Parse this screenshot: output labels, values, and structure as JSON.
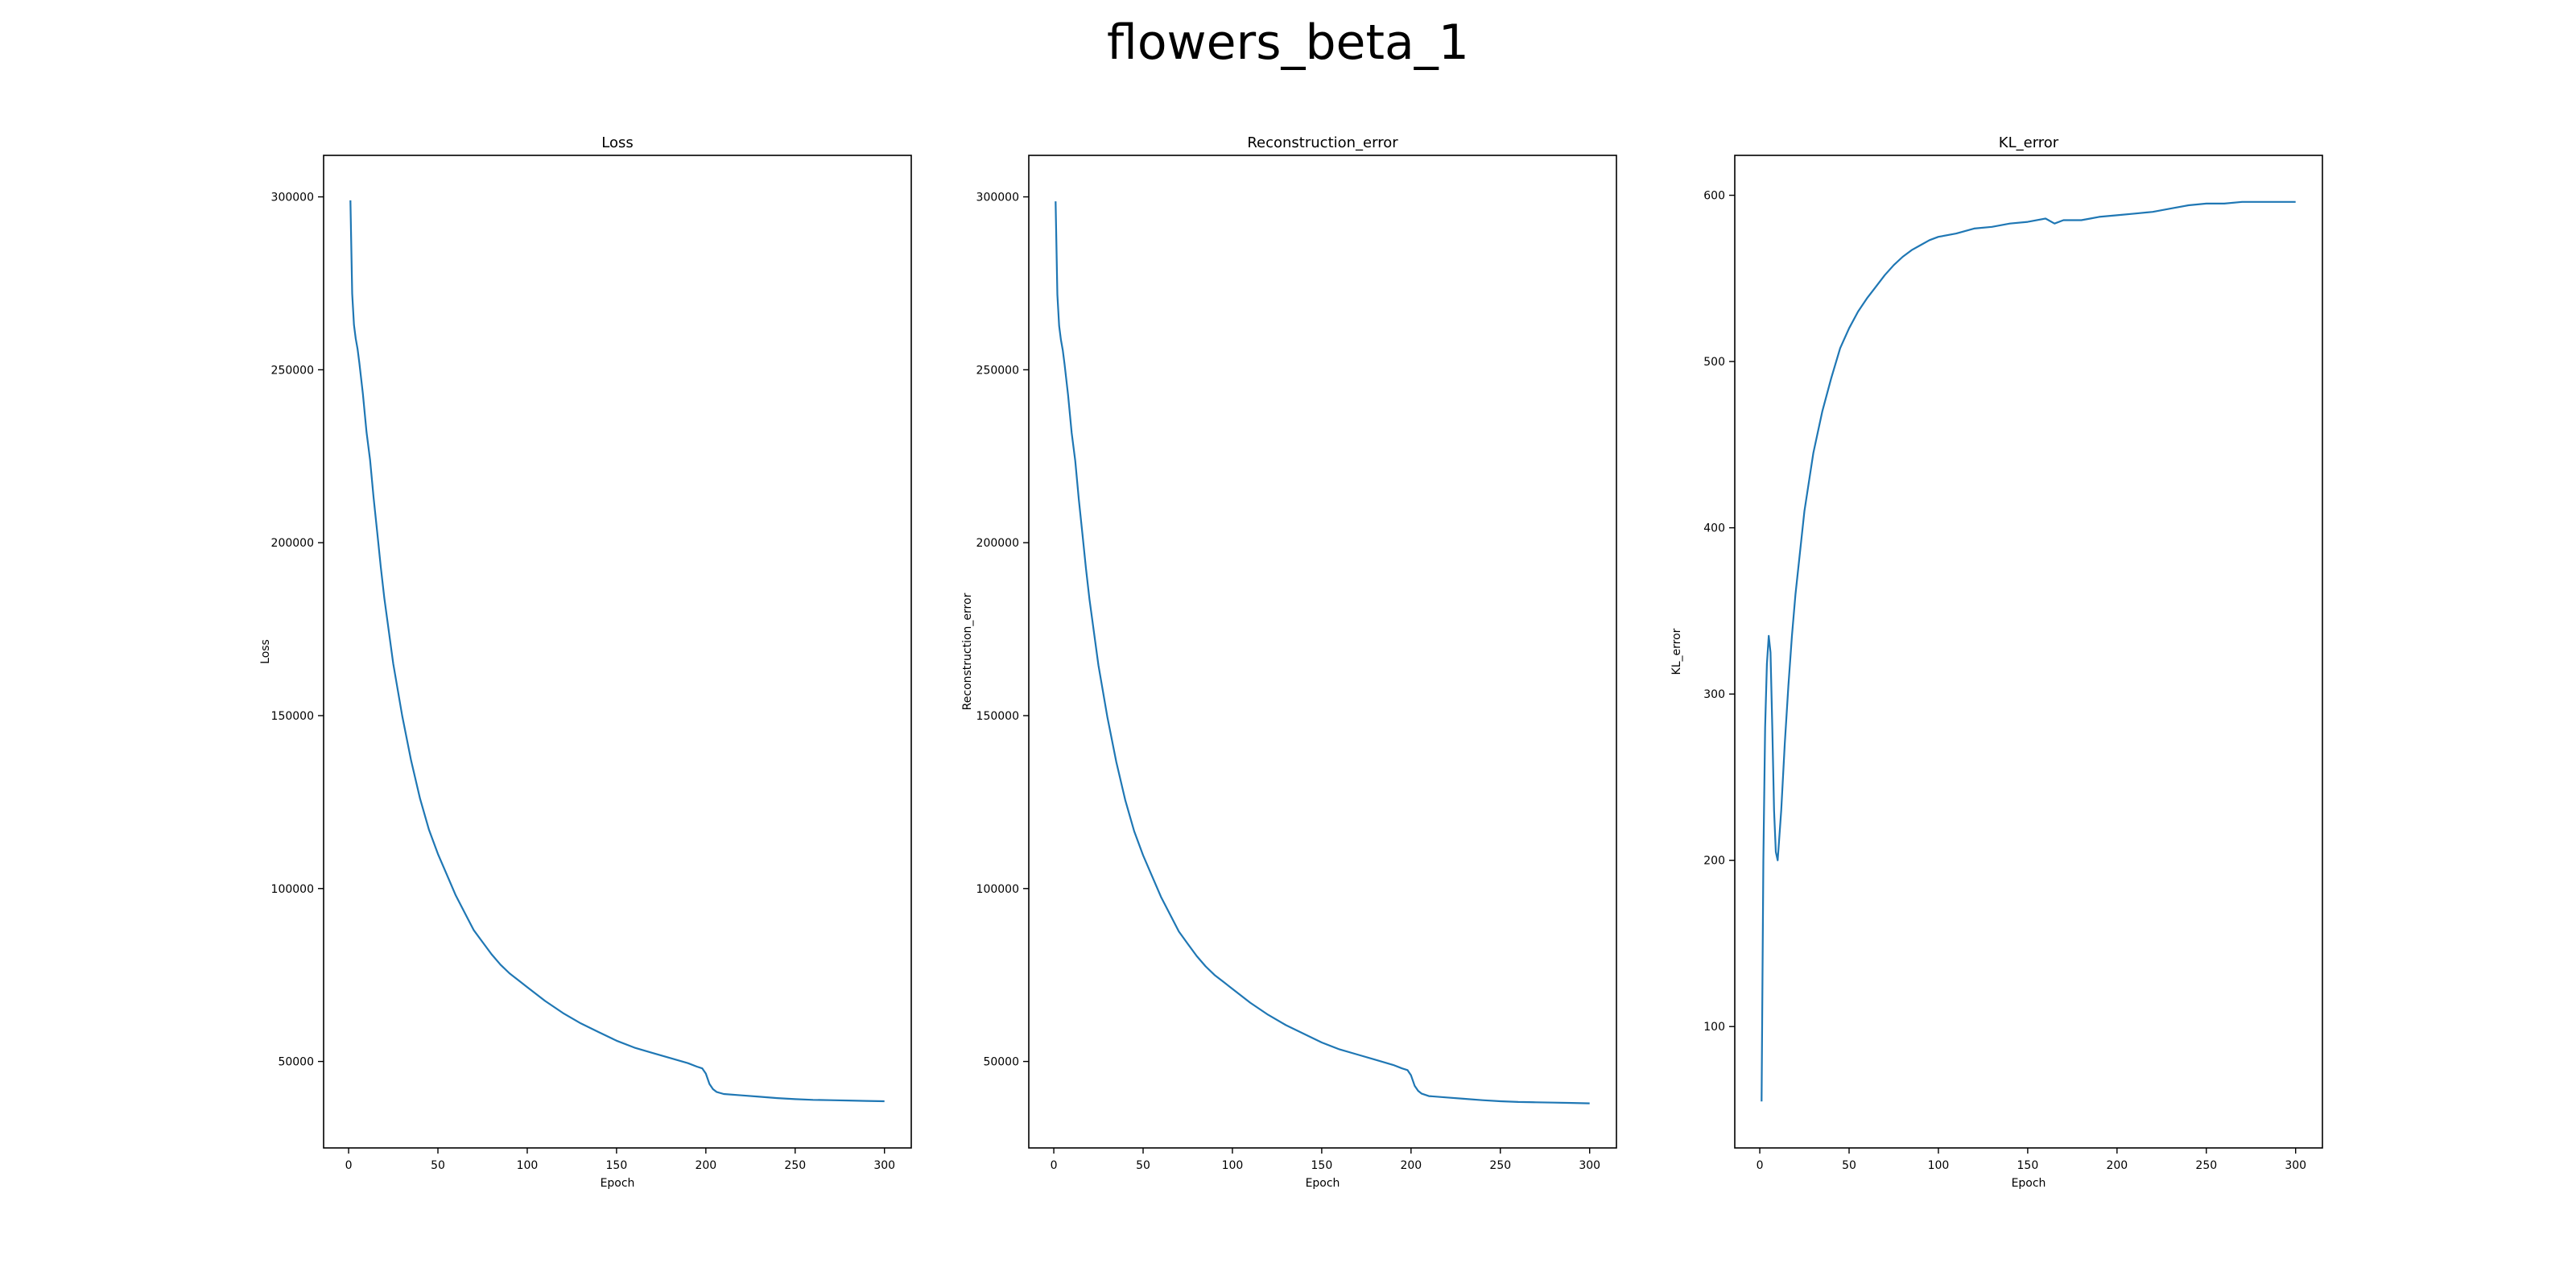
{
  "figure": {
    "suptitle": "flowers_beta_1",
    "line_color": "#1f77b4"
  },
  "chart_data": [
    {
      "type": "line",
      "title": "Loss",
      "xlabel": "Epoch",
      "ylabel": "Loss",
      "xlim": [
        -14,
        315
      ],
      "ylim": [
        25000,
        312000
      ],
      "xticks": [
        0,
        50,
        100,
        150,
        200,
        250,
        300
      ],
      "yticks": [
        50000,
        100000,
        150000,
        200000,
        250000,
        300000
      ],
      "series": [
        {
          "x": [
            1,
            2,
            3,
            4,
            5,
            6,
            8,
            10,
            12,
            14,
            16,
            18,
            20,
            25,
            30,
            35,
            40,
            45,
            50,
            55,
            60,
            65,
            70,
            75,
            80,
            85,
            90,
            95,
            100,
            110,
            120,
            130,
            140,
            150,
            160,
            170,
            180,
            190,
            195,
            198,
            200,
            202,
            204,
            206,
            210,
            220,
            230,
            240,
            250,
            260,
            270,
            280,
            290,
            300
          ],
          "y": [
            299000,
            272000,
            263000,
            259000,
            256000,
            252000,
            243000,
            232000,
            224000,
            213000,
            203000,
            193000,
            184000,
            165000,
            150000,
            137000,
            126000,
            117000,
            110000,
            104000,
            98000,
            93000,
            88000,
            84500,
            81000,
            78000,
            75500,
            73500,
            71500,
            67500,
            64000,
            61000,
            58500,
            56000,
            54000,
            52500,
            51000,
            49500,
            48500,
            48000,
            46500,
            43500,
            42000,
            41200,
            40600,
            40200,
            39800,
            39400,
            39100,
            38900,
            38800,
            38700,
            38600,
            38500
          ]
        }
      ]
    },
    {
      "type": "line",
      "title": "Reconstruction_error",
      "xlabel": "Epoch",
      "ylabel": "Reconstruction_error",
      "xlim": [
        -14,
        315
      ],
      "ylim": [
        25000,
        312000
      ],
      "xticks": [
        0,
        50,
        100,
        150,
        200,
        250,
        300
      ],
      "yticks": [
        50000,
        100000,
        150000,
        200000,
        250000,
        300000
      ],
      "series": [
        {
          "x": [
            1,
            2,
            3,
            4,
            5,
            6,
            8,
            10,
            12,
            14,
            16,
            18,
            20,
            25,
            30,
            35,
            40,
            45,
            50,
            55,
            60,
            65,
            70,
            75,
            80,
            85,
            90,
            95,
            100,
            110,
            120,
            130,
            140,
            150,
            160,
            170,
            180,
            190,
            195,
            198,
            200,
            202,
            204,
            206,
            210,
            220,
            230,
            240,
            250,
            260,
            270,
            280,
            290,
            300
          ],
          "y": [
            298700,
            271700,
            262700,
            258700,
            255700,
            251700,
            242700,
            231700,
            223700,
            212600,
            202600,
            192600,
            183600,
            164600,
            149600,
            136600,
            125600,
            116600,
            109600,
            103600,
            97600,
            92600,
            87600,
            84000,
            80500,
            77500,
            75000,
            73000,
            71000,
            67000,
            63500,
            60500,
            58000,
            55500,
            53500,
            52000,
            50500,
            49000,
            48000,
            47500,
            46000,
            43000,
            41500,
            40700,
            40000,
            39600,
            39200,
            38800,
            38500,
            38300,
            38200,
            38100,
            38000,
            37900
          ]
        }
      ]
    },
    {
      "type": "line",
      "title": "KL_error",
      "xlabel": "Epoch",
      "ylabel": "KL_error",
      "xlim": [
        -14,
        315
      ],
      "ylim": [
        27,
        624
      ],
      "xticks": [
        0,
        50,
        100,
        150,
        200,
        250,
        300
      ],
      "yticks": [
        100,
        200,
        300,
        400,
        500,
        600
      ],
      "series": [
        {
          "x": [
            1,
            2,
            3,
            4,
            5,
            6,
            7,
            8,
            9,
            10,
            12,
            14,
            16,
            18,
            20,
            25,
            30,
            35,
            40,
            45,
            50,
            55,
            60,
            65,
            70,
            75,
            80,
            85,
            90,
            95,
            100,
            110,
            120,
            130,
            140,
            150,
            160,
            165,
            170,
            175,
            180,
            185,
            190,
            200,
            210,
            220,
            230,
            240,
            250,
            260,
            270,
            280,
            290,
            300
          ],
          "y": [
            55,
            200,
            280,
            318,
            335,
            325,
            280,
            230,
            205,
            200,
            230,
            270,
            305,
            335,
            360,
            410,
            445,
            470,
            490,
            508,
            520,
            530,
            538,
            545,
            552,
            558,
            563,
            567,
            570,
            573,
            575,
            577,
            580,
            581,
            583,
            584,
            586,
            583,
            585,
            585,
            585,
            586,
            587,
            588,
            589,
            590,
            592,
            594,
            595,
            595,
            596,
            596,
            596,
            596
          ]
        }
      ]
    }
  ]
}
